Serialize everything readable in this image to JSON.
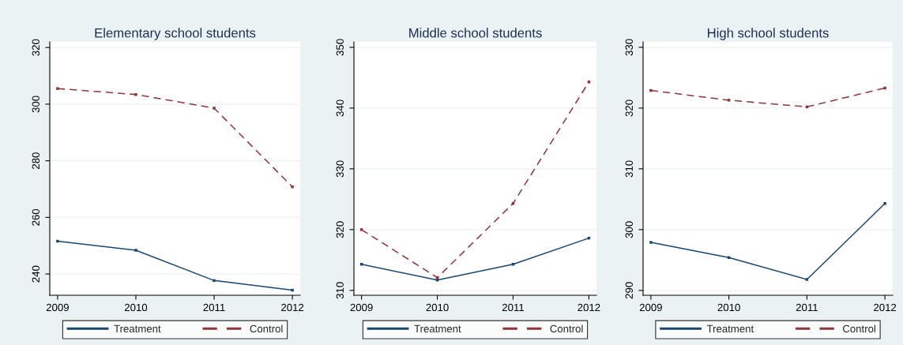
{
  "chart_data": [
    {
      "type": "line",
      "title": "Elementary school students",
      "categories": [
        "2009",
        "2010",
        "2011",
        "2012"
      ],
      "ylim": [
        232.5,
        322
      ],
      "yticks": [
        240,
        260,
        280,
        300,
        320
      ],
      "grid": "y",
      "legend": "bottom",
      "marker": "square",
      "series": [
        {
          "name": "Treatment",
          "color": "#1a476f",
          "line_style": "solid",
          "values": [
            251.6,
            248.4,
            237.7,
            234.3
          ]
        },
        {
          "name": "Control",
          "color": "#90353b",
          "line_style": "dashed",
          "values": [
            305.5,
            303.4,
            298.6,
            270.8
          ]
        }
      ]
    },
    {
      "type": "line",
      "title": "Middle school students",
      "categories": [
        "2009",
        "2010",
        "2011",
        "2012"
      ],
      "ylim": [
        309.2,
        350.9
      ],
      "yticks": [
        310,
        320,
        330,
        340,
        350
      ],
      "grid": "y",
      "legend": "bottom",
      "marker": "square",
      "series": [
        {
          "name": "Treatment",
          "color": "#1a476f",
          "line_style": "solid",
          "values": [
            314.3,
            311.7,
            314.3,
            318.6
          ]
        },
        {
          "name": "Control",
          "color": "#90353b",
          "line_style": "dashed",
          "values": [
            320.0,
            312.1,
            324.3,
            344.3
          ]
        }
      ]
    },
    {
      "type": "line",
      "title": "High school students",
      "categories": [
        "2009",
        "2010",
        "2011",
        "2012"
      ],
      "ylim": [
        289.2,
        330.9
      ],
      "yticks": [
        290,
        300,
        310,
        320,
        330
      ],
      "grid": "y",
      "legend": "bottom",
      "marker": "square",
      "series": [
        {
          "name": "Treatment",
          "color": "#1a476f",
          "line_style": "solid",
          "values": [
            297.9,
            295.4,
            291.8,
            304.3
          ]
        },
        {
          "name": "Control",
          "color": "#90353b",
          "line_style": "dashed",
          "values": [
            322.9,
            321.3,
            320.2,
            323.3
          ]
        }
      ]
    }
  ]
}
